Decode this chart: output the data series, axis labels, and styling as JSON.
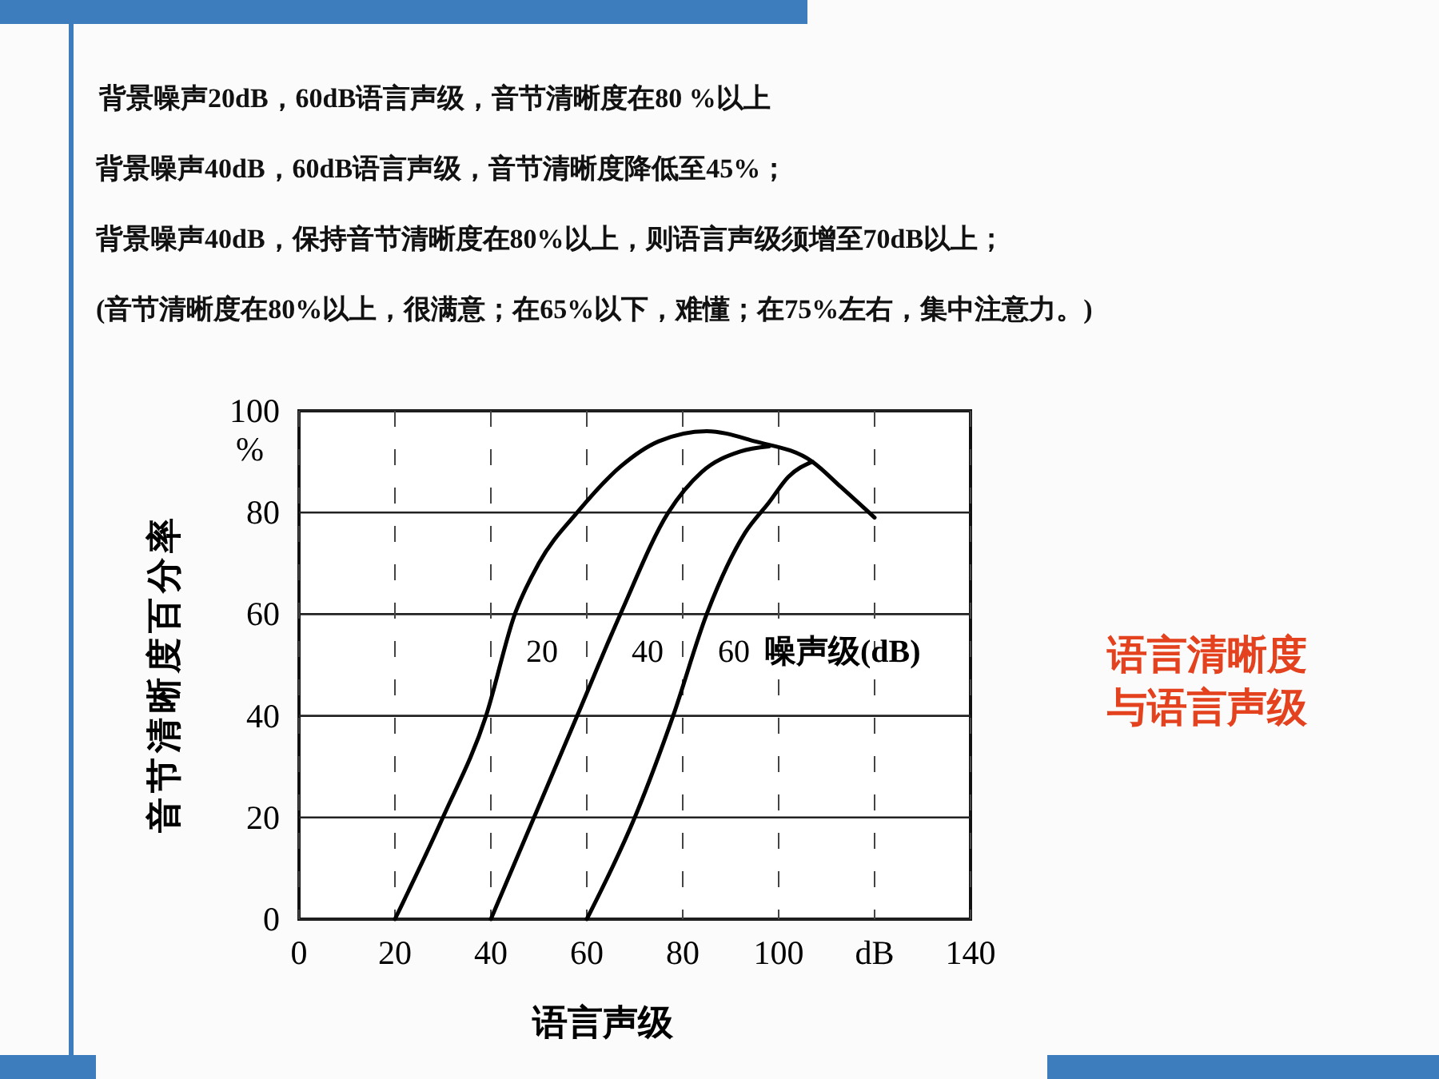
{
  "chart_data": {
    "type": "line",
    "title": "语言清晰度与语言声级",
    "xlabel": "语言声级",
    "ylabel": "音节清晰度百分率",
    "legend_title": "噪声级(dB)",
    "annotations": [
      "背景噪声20dB，60dB语言声级，音节清晰度在80 %以上",
      "背景噪声40dB，60dB语言声级，音节清晰度降低至45%；",
      "背景噪声40dB，保持音节清晰度在80%以上，则语言声级须增至70dB以上；",
      "(音节清晰度在80%以上，很满意；在65%以下，难懂；在75%左右，集中注意力。)"
    ],
    "xlim": [
      0,
      140
    ],
    "xticks": [
      0,
      20,
      40,
      60,
      80,
      100,
      {
        "value": 120,
        "label": "dB"
      },
      140
    ],
    "ylim": [
      0,
      100
    ],
    "yticks": [
      0,
      20,
      40,
      60,
      80,
      {
        "value": 100,
        "label": "100\n%"
      }
    ],
    "grid": true,
    "line_style": "solid",
    "series": [
      {
        "name": "20",
        "color": "#000000",
        "x": [
          20,
          30,
          39,
          45,
          50,
          58,
          67,
          75,
          85,
          95,
          107,
          113,
          120
        ],
        "values": [
          0,
          20,
          40,
          60,
          70,
          80,
          89,
          94,
          96,
          94,
          90,
          85,
          79
        ]
      },
      {
        "name": "40",
        "color": "#000000",
        "x": [
          40,
          49,
          58,
          67,
          77,
          84,
          92,
          98
        ],
        "values": [
          0,
          20,
          40,
          60,
          80,
          88,
          92,
          93
        ]
      },
      {
        "name": "60",
        "color": "#000000",
        "x": [
          60,
          70,
          78,
          85,
          93,
          98,
          102,
          107
        ],
        "values": [
          0,
          20,
          40,
          60,
          76,
          82,
          87,
          90
        ]
      }
    ]
  }
}
